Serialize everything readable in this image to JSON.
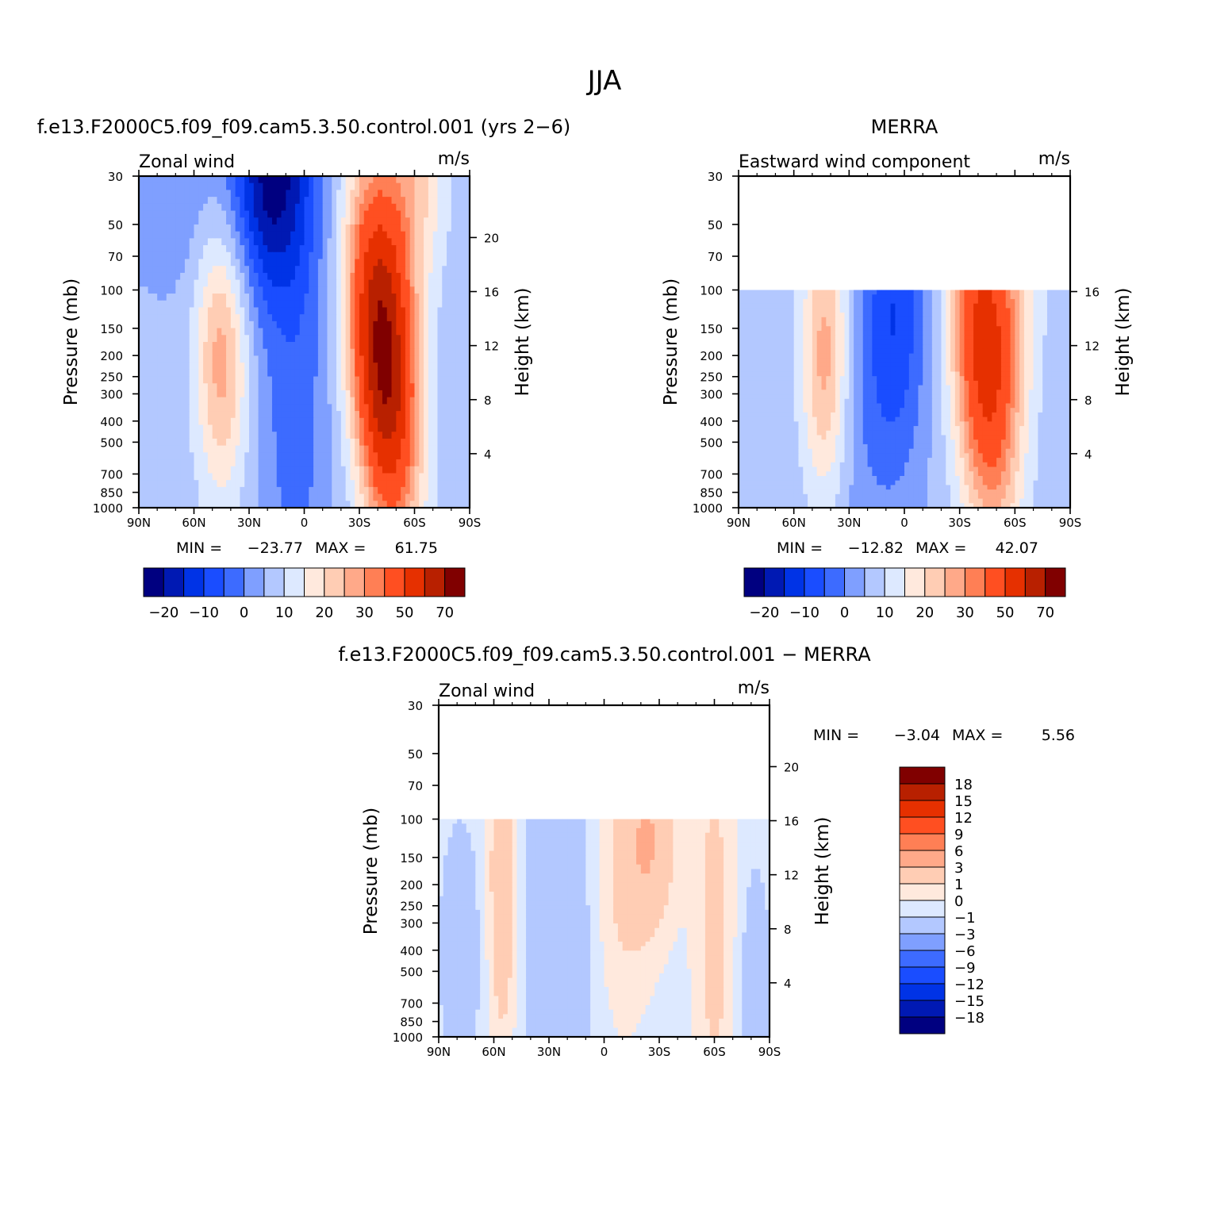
{
  "figure": {
    "title": "JJA",
    "colors": {
      "levels": [
        "#000080",
        "#0019b3",
        "#0033e6",
        "#1a4dff",
        "#3d6bff",
        "#7f9fff",
        "#b3c8ff",
        "#dde9ff",
        "#ffe9dd",
        "#ffcdb4",
        "#ffa989",
        "#ff7f55",
        "#ff4f21",
        "#e63000",
        "#b82000",
        "#800000"
      ]
    }
  },
  "chart_data": [
    {
      "type": "heatmap",
      "title": "f.e13.F2000C5.f09_f09.cam5.3.50.control.001 (yrs 2−6)",
      "left_label": "Zonal wind",
      "units": "m/s",
      "ylabel": "Pressure (mb)",
      "ylabel_right": "Height (km)",
      "x_ticks": [
        "90N",
        "60N",
        "30N",
        "0",
        "30S",
        "60S",
        "90S"
      ],
      "y_ticks": [
        "30",
        "50",
        "70",
        "100",
        "150",
        "200",
        "250",
        "300",
        "400",
        "500",
        "700",
        "850",
        "1000"
      ],
      "y_ticks_right": [
        "20",
        "16",
        "12",
        "8",
        "4"
      ],
      "xlim": [
        90,
        -90
      ],
      "ylim": [
        1000,
        30
      ],
      "yscale": "log",
      "data_top_mb": 30,
      "min_label": "MIN =",
      "min_value": "−23.77",
      "max_label": "MAX =",
      "max_value": "61.75",
      "colorbar_labels": [
        "−20",
        "−10",
        "0",
        "10",
        "20",
        "30",
        "50",
        "70"
      ],
      "jet_features": [
        {
          "lat": -45,
          "pressure_mb": 200,
          "max": 61.75,
          "sign": "westerly"
        },
        {
          "lat": 45,
          "pressure_mb": 200,
          "max": 20,
          "sign": "westerly"
        },
        {
          "lat": 20,
          "pressure_mb": 30,
          "min": -23.77,
          "sign": "easterly"
        }
      ]
    },
    {
      "type": "heatmap",
      "title": "MERRA",
      "left_label": "Eastward wind component",
      "units": "m/s",
      "ylabel": "Pressure (mb)",
      "ylabel_right": "Height (km)",
      "x_ticks": [
        "90N",
        "60N",
        "30N",
        "0",
        "30S",
        "60S",
        "90S"
      ],
      "y_ticks": [
        "30",
        "50",
        "70",
        "100",
        "150",
        "200",
        "250",
        "300",
        "400",
        "500",
        "700",
        "850",
        "1000"
      ],
      "y_ticks_right": [
        "16",
        "12",
        "8",
        "4"
      ],
      "xlim": [
        90,
        -90
      ],
      "ylim": [
        1000,
        30
      ],
      "yscale": "log",
      "data_top_mb": 100,
      "min_label": "MIN =",
      "min_value": "−12.82",
      "max_label": "MAX =",
      "max_value": "42.07",
      "colorbar_labels": [
        "−20",
        "−10",
        "0",
        "10",
        "20",
        "30",
        "50",
        "70"
      ]
    },
    {
      "type": "heatmap",
      "title": "f.e13.F2000C5.f09_f09.cam5.3.50.control.001 − MERRA",
      "left_label": "Zonal wind",
      "units": "m/s",
      "ylabel": "Pressure (mb)",
      "ylabel_right": "Height (km)",
      "x_ticks": [
        "90N",
        "60N",
        "30N",
        "0",
        "30S",
        "60S",
        "90S"
      ],
      "y_ticks": [
        "30",
        "50",
        "70",
        "100",
        "150",
        "200",
        "250",
        "300",
        "400",
        "500",
        "700",
        "850",
        "1000"
      ],
      "y_ticks_right": [
        "20",
        "16",
        "12",
        "8",
        "4"
      ],
      "xlim": [
        90,
        -90
      ],
      "ylim": [
        1000,
        30
      ],
      "yscale": "log",
      "data_top_mb": 100,
      "min_label": "MIN =",
      "min_value": "−3.04",
      "max_label": "MAX =",
      "max_value": "5.56",
      "colorbar_labels": [
        "18",
        "15",
        "12",
        "9",
        "6",
        "3",
        "1",
        "0",
        "−1",
        "−3",
        "−6",
        "−9",
        "−12",
        "−15",
        "−18"
      ]
    }
  ]
}
